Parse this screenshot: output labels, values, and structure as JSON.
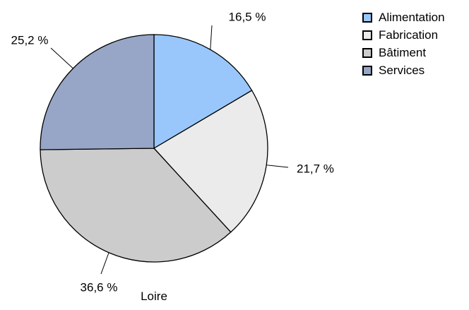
{
  "chart_data": {
    "type": "pie",
    "title": "",
    "caption": "Loire",
    "categories": [
      "Alimentation",
      "Fabrication",
      "Bâtiment",
      "Services"
    ],
    "values": [
      16.5,
      21.7,
      36.6,
      25.2
    ],
    "labels": [
      "16,5 %",
      "21,7 %",
      "36,6 %",
      "25,2 %"
    ],
    "colors": [
      "#99c7fb",
      "#ebebeb",
      "#cccccc",
      "#97a6c7"
    ],
    "legend_position": "top-right"
  }
}
